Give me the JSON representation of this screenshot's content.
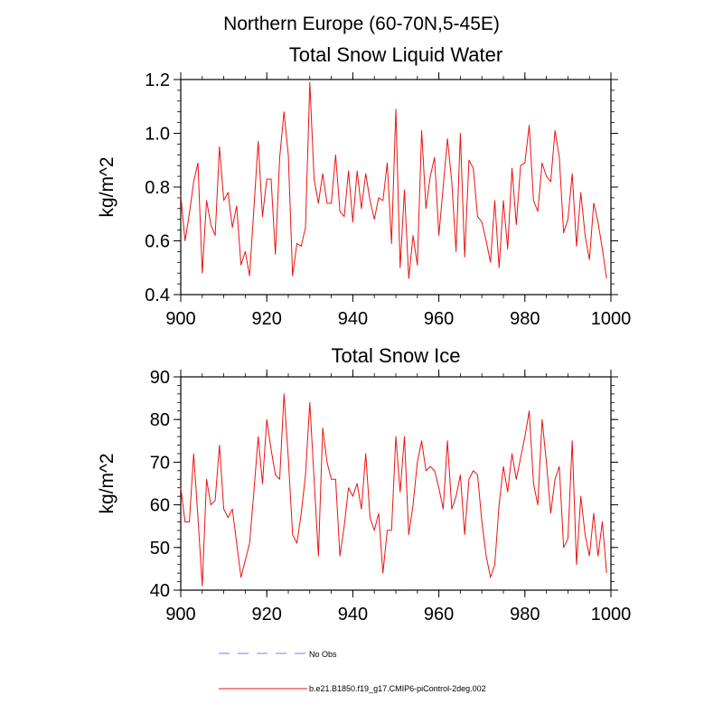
{
  "figure_title": "Northern Europe (60-70N,5-45E)",
  "legend": [
    {
      "label": "No Obs",
      "color": "#9999dd",
      "dash": true
    },
    {
      "label": "b.e21.B1850.f19_g17.CMIP6-piControl-2deg.002",
      "color": "#ee1111",
      "dash": false
    }
  ],
  "chart_data": [
    {
      "type": "line",
      "title": "Total Snow Liquid Water",
      "xlabel": "",
      "ylabel": "kg/m^2",
      "xlim": [
        900,
        1000
      ],
      "ylim": [
        0.4,
        1.2
      ],
      "xticks": [
        900,
        920,
        940,
        960,
        980,
        1000
      ],
      "xtick_labels": [
        "900",
        "920",
        "940",
        "960",
        "980",
        "1000"
      ],
      "yticks": [
        0.4,
        0.6,
        0.8,
        1.0,
        1.2
      ],
      "ytick_labels": [
        "0.4",
        "0.6",
        "0.8",
        "1.0",
        "1.2"
      ],
      "grid": false,
      "series": [
        {
          "color": "#ee1111",
          "x_start": 900,
          "x_step": 1,
          "values": [
            0.77,
            0.6,
            0.7,
            0.82,
            0.89,
            0.48,
            0.75,
            0.66,
            0.62,
            0.95,
            0.75,
            0.78,
            0.65,
            0.73,
            0.51,
            0.56,
            0.47,
            0.72,
            0.97,
            0.69,
            0.83,
            0.83,
            0.55,
            0.91,
            1.08,
            0.92,
            0.47,
            0.59,
            0.58,
            0.65,
            1.19,
            0.83,
            0.74,
            0.85,
            0.74,
            0.74,
            0.92,
            0.71,
            0.69,
            0.86,
            0.67,
            0.86,
            0.72,
            0.85,
            0.75,
            0.68,
            0.76,
            0.75,
            0.89,
            0.59,
            1.09,
            0.5,
            0.79,
            0.46,
            0.62,
            0.51,
            1.01,
            0.72,
            0.84,
            0.91,
            0.62,
            0.8,
            0.98,
            0.82,
            0.56,
            1.0,
            0.54,
            0.9,
            0.87,
            0.69,
            0.67,
            0.6,
            0.52,
            0.75,
            0.5,
            0.75,
            0.57,
            0.87,
            0.66,
            0.88,
            0.89,
            1.03,
            0.75,
            0.71,
            0.89,
            0.84,
            0.82,
            1.01,
            0.91,
            0.63,
            0.68,
            0.85,
            0.58,
            0.78,
            0.62,
            0.53,
            0.74,
            0.67,
            0.57,
            0.46
          ]
        }
      ]
    },
    {
      "type": "line",
      "title": "Total Snow Ice",
      "xlabel": "",
      "ylabel": "kg/m^2",
      "xlim": [
        900,
        1000
      ],
      "ylim": [
        40,
        90
      ],
      "xticks": [
        900,
        920,
        940,
        960,
        980,
        1000
      ],
      "xtick_labels": [
        "900",
        "920",
        "940",
        "960",
        "980",
        "1000"
      ],
      "yticks": [
        40,
        50,
        60,
        70,
        80,
        90
      ],
      "ytick_labels": [
        "40",
        "50",
        "60",
        "70",
        "80",
        "90"
      ],
      "grid": false,
      "series": [
        {
          "color": "#ee1111",
          "x_start": 900,
          "x_step": 1,
          "values": [
            64,
            56,
            56,
            72,
            57,
            41,
            66,
            60,
            61,
            74,
            59,
            57,
            59,
            51,
            43,
            47,
            51,
            63,
            76,
            65,
            80,
            73,
            67,
            66,
            86,
            71,
            53,
            51,
            58,
            67,
            84,
            66,
            48,
            78,
            70,
            66,
            66,
            48,
            55,
            64,
            62,
            65,
            59,
            72,
            57,
            54,
            58,
            44,
            54,
            54,
            76,
            63,
            76,
            53,
            60,
            70,
            75,
            68,
            69,
            68,
            64,
            59,
            75,
            59,
            62,
            67,
            53,
            66,
            68,
            67,
            56,
            48,
            43,
            46,
            60,
            69,
            63,
            72,
            66,
            71,
            76,
            82,
            65,
            60,
            80,
            70,
            58,
            66,
            69,
            50,
            52,
            75,
            46,
            62,
            53,
            48,
            58,
            48,
            56,
            44
          ]
        }
      ]
    }
  ]
}
